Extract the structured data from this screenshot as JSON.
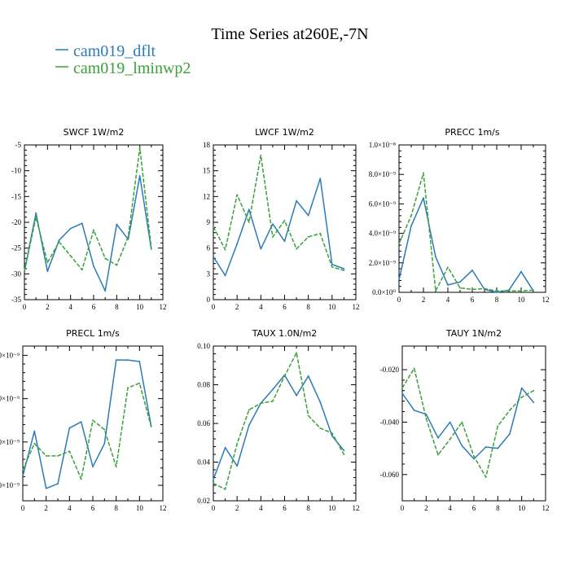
{
  "figure": {
    "title": "Time Series at260E,-7N",
    "legend": [
      {
        "label": "cam019_dflt",
        "color": "#2b7bb9",
        "dash": false
      },
      {
        "label": "cam019_lminwp2",
        "color": "#3aa13a",
        "dash": true
      }
    ]
  },
  "chart_data": [
    {
      "type": "line",
      "title": "SWCF   1W/m2",
      "xlim": [
        0,
        12
      ],
      "ylim": [
        -35,
        -5
      ],
      "xticks": [
        "0",
        "2",
        "4",
        "6",
        "8",
        "10",
        "12"
      ],
      "yticks": [
        {
          "v": -35,
          "label": "-35"
        },
        {
          "v": -30,
          "label": "-30"
        },
        {
          "v": -25,
          "label": "-25"
        },
        {
          "v": -20,
          "label": "-20"
        },
        {
          "v": -15,
          "label": "-15"
        },
        {
          "v": -10,
          "label": "-10"
        },
        {
          "v": -5,
          "label": "-5"
        }
      ],
      "x": [
        0,
        1,
        2,
        3,
        4,
        5,
        6,
        7,
        8,
        9,
        10,
        11
      ],
      "series": [
        {
          "name": "cam019_dflt",
          "values": [
            -29.5,
            -18.2,
            -29.5,
            -23.5,
            -21.2,
            -20.2,
            -28.5,
            -33.3,
            -20.4,
            -23.3,
            -11.0,
            -25.2
          ]
        },
        {
          "name": "cam019_lminwp2",
          "values": [
            -29.5,
            -19.0,
            -27.8,
            -23.8,
            -26.5,
            -29.2,
            -21.5,
            -27.0,
            -28.3,
            -22.8,
            -5.5,
            -25.0
          ]
        }
      ]
    },
    {
      "type": "line",
      "title": "LWCF   1W/m2",
      "xlim": [
        0,
        12
      ],
      "ylim": [
        0,
        18
      ],
      "xticks": [
        "0",
        "2",
        "4",
        "6",
        "8",
        "10",
        "12"
      ],
      "yticks": [
        {
          "v": 0,
          "label": "0"
        },
        {
          "v": 3,
          "label": "3"
        },
        {
          "v": 6,
          "label": "6"
        },
        {
          "v": 9,
          "label": "9"
        },
        {
          "v": 12,
          "label": "12"
        },
        {
          "v": 15,
          "label": "15"
        },
        {
          "v": 18,
          "label": "18"
        }
      ],
      "x": [
        0,
        1,
        2,
        3,
        4,
        5,
        6,
        7,
        8,
        9,
        10,
        11
      ],
      "series": [
        {
          "name": "cam019_dflt",
          "values": [
            5.0,
            2.8,
            6.5,
            10.5,
            5.9,
            8.8,
            6.8,
            11.5,
            9.8,
            14.1,
            4.1,
            3.6
          ]
        },
        {
          "name": "cam019_lminwp2",
          "values": [
            8.5,
            5.8,
            12.2,
            9.0,
            16.8,
            7.3,
            9.2,
            5.9,
            7.3,
            7.7,
            3.8,
            3.4
          ]
        }
      ]
    },
    {
      "type": "line",
      "title": "PRECC   1m/s",
      "xlim": [
        0,
        12
      ],
      "ylim": [
        0,
        1e-08
      ],
      "xticks": [
        "0",
        "2",
        "4",
        "6",
        "8",
        "10",
        "12"
      ],
      "yticks": [
        {
          "v": 0,
          "label": "0.0×10⁰"
        },
        {
          "v": 2e-09,
          "label": "2.0×10⁻⁹"
        },
        {
          "v": 4e-09,
          "label": "4.0×10⁻⁹"
        },
        {
          "v": 6e-09,
          "label": "6.0×10⁻⁹"
        },
        {
          "v": 8e-09,
          "label": "8.0×10⁻⁹"
        },
        {
          "v": 1e-08,
          "label": "1.0×10⁻⁸"
        }
      ],
      "x": [
        0,
        1,
        2,
        3,
        4,
        5,
        6,
        7,
        8,
        9,
        10,
        11
      ],
      "series": [
        {
          "name": "cam019_dflt",
          "values": [
            8.5e-10,
            4.5e-09,
            6.4e-09,
            2.4e-09,
            5e-10,
            7e-10,
            1.5e-09,
            2e-10,
            0,
            1.5e-10,
            1.4e-09,
            1e-10
          ]
        },
        {
          "name": "cam019_lminwp2",
          "values": [
            3.3e-09,
            5.2e-09,
            8.1e-09,
            1e-10,
            1.7e-09,
            3e-10,
            2e-10,
            2.5e-10,
            1e-10,
            1e-10,
            1e-10,
            1.5e-10
          ]
        }
      ]
    },
    {
      "type": "line",
      "title": "PRECL   1m/s",
      "xlim": [
        0,
        12
      ],
      "ylim": [
        0,
        1
      ],
      "xticks": [
        "0",
        "2",
        "4",
        "6",
        "8",
        "10",
        "12"
      ],
      "yticks": [
        {
          "v": 0.1,
          "label": "0×10⁻⁹"
        },
        {
          "v": 0.38,
          "label": "0×10⁻⁹"
        },
        {
          "v": 0.66,
          "label": "0×10⁻⁹"
        },
        {
          "v": 0.94,
          "label": "0×10⁻⁹"
        }
      ],
      "x": [
        0,
        1,
        2,
        3,
        4,
        5,
        6,
        7,
        8,
        9,
        10,
        11
      ],
      "series": [
        {
          "name": "cam019_dflt",
          "values": [
            0.16,
            0.45,
            0.08,
            0.11,
            0.47,
            0.51,
            0.22,
            0.37,
            0.91,
            0.91,
            0.9,
            0.48
          ]
        },
        {
          "name": "cam019_lminwp2",
          "values": [
            0.2,
            0.37,
            0.29,
            0.29,
            0.32,
            0.14,
            0.52,
            0.46,
            0.22,
            0.73,
            0.76,
            0.48
          ]
        }
      ]
    },
    {
      "type": "line",
      "title": "TAUX   1.0N/m2",
      "xlim": [
        0,
        12
      ],
      "ylim": [
        0.02,
        0.1
      ],
      "xticks": [
        "0",
        "2",
        "4",
        "6",
        "8",
        "10",
        "12"
      ],
      "yticks": [
        {
          "v": 0.02,
          "label": "0.02"
        },
        {
          "v": 0.04,
          "label": "0.04"
        },
        {
          "v": 0.06,
          "label": "0.06"
        },
        {
          "v": 0.08,
          "label": "0.08"
        },
        {
          "v": 0.1,
          "label": "0.10"
        }
      ],
      "x": [
        0,
        1,
        2,
        3,
        4,
        5,
        6,
        7,
        8,
        9,
        10,
        11
      ],
      "series": [
        {
          "name": "cam019_dflt",
          "values": [
            0.031,
            0.0475,
            0.038,
            0.059,
            0.0705,
            0.0775,
            0.085,
            0.0745,
            0.0845,
            0.071,
            0.0535,
            0.046
          ]
        },
        {
          "name": "cam019_lminwp2",
          "values": [
            0.029,
            0.026,
            0.0495,
            0.067,
            0.0705,
            0.0715,
            0.0845,
            0.0965,
            0.064,
            0.0575,
            0.055,
            0.044
          ]
        }
      ]
    },
    {
      "type": "line",
      "title": "TAUY   1N/m2",
      "xlim": [
        0,
        12
      ],
      "ylim": [
        -0.07,
        -0.011
      ],
      "xticks": [
        "0",
        "2",
        "4",
        "6",
        "8",
        "10",
        "12"
      ],
      "yticks": [
        {
          "v": -0.06,
          "label": "-0.060"
        },
        {
          "v": -0.04,
          "label": "-0.040"
        },
        {
          "v": -0.02,
          "label": "-0.020"
        }
      ],
      "x": [
        0,
        1,
        2,
        3,
        4,
        5,
        6,
        7,
        8,
        9,
        10,
        11
      ],
      "series": [
        {
          "name": "cam019_dflt",
          "values": [
            -0.029,
            -0.0355,
            -0.037,
            -0.046,
            -0.04,
            -0.049,
            -0.054,
            -0.0495,
            -0.05,
            -0.0445,
            -0.027,
            -0.0325
          ]
        },
        {
          "name": "cam019_lminwp2",
          "values": [
            -0.027,
            -0.0195,
            -0.0385,
            -0.0525,
            -0.0465,
            -0.04,
            -0.053,
            -0.061,
            -0.0415,
            -0.0355,
            -0.0305,
            -0.028
          ]
        }
      ]
    }
  ]
}
